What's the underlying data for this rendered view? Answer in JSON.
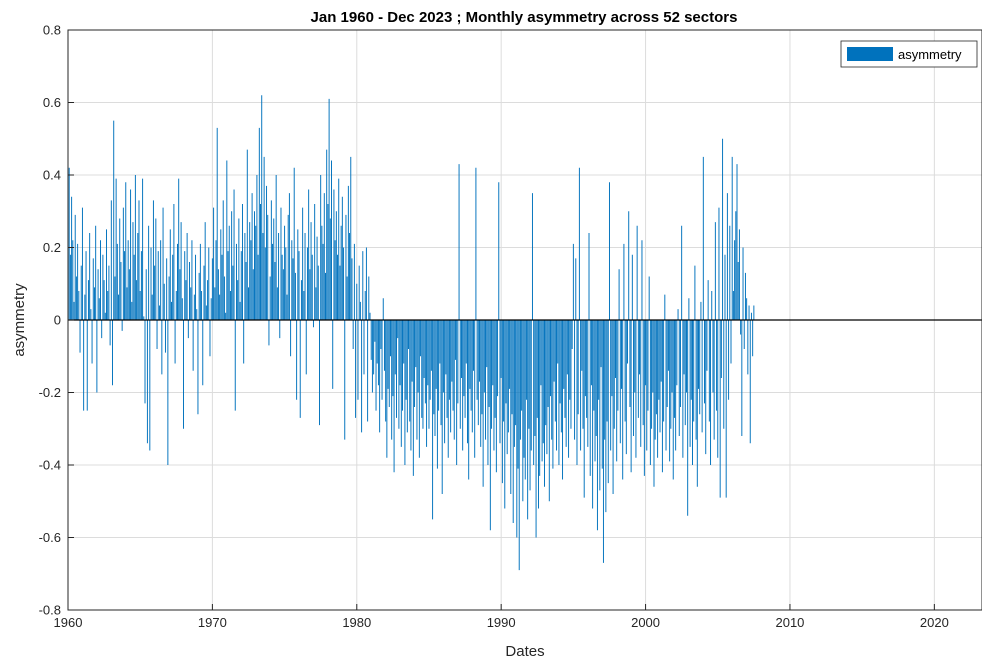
{
  "chart_data": {
    "type": "bar",
    "title": "Jan 1960 - Dec 2023 ; Monthly asymmetry across 52 sectors",
    "xlabel": "Dates",
    "ylabel": "asymmetry",
    "xlim": [
      1960,
      2023.3
    ],
    "ylim": [
      -0.8,
      0.8
    ],
    "x_ticks": [
      1960,
      1970,
      1980,
      1990,
      2000,
      2010,
      2020
    ],
    "y_ticks": [
      -0.8,
      -0.6,
      -0.4,
      -0.2,
      0,
      0.2,
      0.4,
      0.6,
      0.8
    ],
    "y_tick_labels": [
      "-0.8",
      "-0.6",
      "-0.4",
      "-0.2",
      "0",
      "0.2",
      "0.4",
      "0.6",
      "0.8"
    ],
    "grid": true,
    "legend_position": "top-right",
    "bar_color": "#0072BD",
    "series": [
      {
        "name": "asymmetry",
        "x_start": "1960-01",
        "frequency": "monthly",
        "values": [
          -0.26,
          0.42,
          0.18,
          0.34,
          0.22,
          0.05,
          0.29,
          0.12,
          0.21,
          0.08,
          -0.09,
          0.15,
          0.31,
          -0.25,
          0.07,
          0.19,
          -0.25,
          0.11,
          0.24,
          0.03,
          -0.12,
          0.17,
          0.09,
          0.26,
          -0.2,
          0.14,
          0.06,
          0.22,
          -0.05,
          0.18,
          0.11,
          0.02,
          0.25,
          0.08,
          0.15,
          -0.07,
          0.33,
          -0.18,
          0.55,
          0.12,
          0.39,
          0.21,
          0.07,
          0.28,
          0.16,
          -0.03,
          0.31,
          0.19,
          0.38,
          0.09,
          0.22,
          0.14,
          0.36,
          0.05,
          0.27,
          0.18,
          0.4,
          0.11,
          0.24,
          0.33,
          0.08,
          0.19,
          0.39,
          0.01,
          -0.23,
          0.14,
          -0.34,
          0.26,
          -0.36,
          0.2,
          0.07,
          0.33,
          0.15,
          0.28,
          -0.08,
          0.19,
          0.04,
          0.22,
          -0.15,
          0.31,
          0.1,
          -0.09,
          0.17,
          -0.4,
          0.12,
          0.25,
          0.05,
          0.18,
          0.32,
          -0.12,
          0.08,
          0.21,
          0.39,
          0.14,
          0.27,
          0.06,
          -0.3,
          0.19,
          0.11,
          0.24,
          -0.05,
          0.16,
          0.09,
          0.22,
          -0.14,
          0.07,
          0.18,
          0.03,
          -0.26,
          0.13,
          0.21,
          0.08,
          -0.18,
          0.15,
          0.27,
          0.04,
          0.11,
          0.2,
          -0.1,
          0.06,
          0.17,
          0.31,
          0.09,
          0.22,
          0.53,
          0.14,
          0.07,
          0.25,
          0.18,
          0.33,
          0.12,
          0.02,
          0.44,
          0.19,
          0.26,
          0.08,
          0.3,
          0.15,
          0.36,
          -0.25,
          0.21,
          0.11,
          0.28,
          0.05,
          0.19,
          0.32,
          -0.12,
          0.24,
          0.16,
          0.47,
          0.09,
          0.27,
          0.22,
          0.35,
          0.14,
          0.3,
          0.26,
          0.4,
          0.18,
          0.53,
          0.32,
          0.62,
          0.24,
          0.45,
          0.2,
          0.37,
          0.29,
          -0.07,
          0.12,
          0.33,
          0.21,
          0.28,
          0.16,
          0.4,
          0.09,
          0.24,
          -0.05,
          0.31,
          0.18,
          0.14,
          0.26,
          0.2,
          0.07,
          0.29,
          0.35,
          -0.1,
          0.22,
          0.17,
          0.42,
          0.13,
          -0.22,
          0.25,
          0.19,
          -0.27,
          0.11,
          0.31,
          0.08,
          0.24,
          -0.15,
          0.2,
          0.36,
          0.14,
          0.27,
          0.18,
          -0.02,
          0.32,
          0.09,
          0.23,
          0.15,
          -0.29,
          0.4,
          0.26,
          0.21,
          0.35,
          0.13,
          0.47,
          0.32,
          0.61,
          0.28,
          0.44,
          -0.19,
          0.36,
          0.22,
          0.3,
          0.18,
          0.39,
          0.15,
          0.26,
          0.34,
          0.2,
          -0.33,
          0.29,
          0.12,
          0.37,
          0.24,
          0.45,
          0.17,
          -0.08,
          0.21,
          -0.27,
          0.1,
          -0.22,
          0.15,
          0.05,
          -0.31,
          0.19,
          -0.15,
          0.08,
          0.2,
          -0.28,
          0.12,
          0.02,
          -0.11,
          -0.2,
          -0.15,
          -0.06,
          -0.25,
          -0.12,
          -0.18,
          -0.31,
          -0.08,
          -0.22,
          0.06,
          -0.14,
          -0.28,
          -0.38,
          -0.19,
          -0.24,
          -0.1,
          -0.33,
          -0.21,
          -0.42,
          -0.15,
          -0.27,
          -0.05,
          -0.3,
          -0.18,
          -0.35,
          -0.25,
          -0.12,
          -0.4,
          -0.22,
          -0.31,
          -0.08,
          -0.28,
          -0.36,
          -0.17,
          -0.43,
          -0.24,
          -0.13,
          -0.33,
          -0.2,
          -0.38,
          -0.1,
          -0.27,
          -0.3,
          -0.16,
          -0.23,
          -0.35,
          -0.18,
          -0.3,
          -0.22,
          -0.14,
          -0.55,
          -0.26,
          -0.32,
          -0.19,
          -0.41,
          -0.25,
          -0.12,
          -0.29,
          -0.48,
          -0.2,
          -0.34,
          -0.15,
          -0.27,
          -0.38,
          -0.22,
          -0.31,
          -0.17,
          -0.25,
          -0.33,
          -0.11,
          -0.4,
          -0.23,
          0.43,
          -0.3,
          -0.16,
          -0.36,
          -0.21,
          -0.27,
          -0.12,
          -0.34,
          -0.44,
          -0.19,
          -0.25,
          -0.31,
          -0.14,
          -0.38,
          0.42,
          -0.22,
          -0.29,
          -0.17,
          -0.35,
          -0.26,
          -0.46,
          -0.2,
          -0.33,
          -0.13,
          -0.4,
          -0.24,
          -0.58,
          -0.3,
          -0.18,
          -0.36,
          -0.27,
          -0.42,
          -0.21,
          0.38,
          -0.34,
          -0.16,
          -0.45,
          -0.28,
          -0.52,
          -0.23,
          -0.37,
          -0.31,
          -0.19,
          -0.48,
          -0.26,
          -0.56,
          -0.35,
          -0.29,
          -0.6,
          -0.41,
          -0.69,
          -0.33,
          -0.25,
          -0.5,
          -0.38,
          -0.44,
          -0.22,
          -0.55,
          -0.3,
          -0.47,
          -0.36,
          0.35,
          -0.4,
          -0.32,
          -0.6,
          -0.27,
          -0.52,
          -0.43,
          -0.18,
          -0.39,
          -0.34,
          -0.46,
          -0.29,
          -0.37,
          -0.24,
          -0.5,
          -0.21,
          -0.33,
          -0.41,
          -0.17,
          -0.28,
          -0.36,
          -0.12,
          -0.4,
          -0.23,
          -0.31,
          -0.44,
          -0.19,
          -0.27,
          -0.35,
          -0.15,
          -0.38,
          -0.22,
          -0.3,
          -0.08,
          0.21,
          -0.33,
          0.17,
          -0.4,
          -0.26,
          0.42,
          -0.36,
          -0.14,
          -0.3,
          -0.49,
          -0.21,
          -0.27,
          -0.35,
          0.24,
          -0.43,
          -0.18,
          -0.52,
          -0.25,
          -0.39,
          -0.32,
          -0.58,
          -0.22,
          -0.47,
          -0.13,
          -0.41,
          -0.67,
          -0.33,
          -0.53,
          -0.28,
          -0.45,
          0.38,
          -0.36,
          -0.21,
          -0.48,
          -0.3,
          -0.16,
          -0.39,
          -0.25,
          0.14,
          -0.34,
          -0.19,
          -0.44,
          0.21,
          -0.28,
          -0.37,
          -0.12,
          0.3,
          -0.24,
          -0.42,
          0.18,
          -0.32,
          -0.2,
          -0.38,
          0.26,
          -0.27,
          -0.15,
          -0.35,
          0.22,
          -0.29,
          -0.43,
          -0.18,
          -0.36,
          -0.25,
          0.12,
          -0.4,
          -0.3,
          -0.2,
          -0.46,
          -0.33,
          -0.26,
          -0.38,
          -0.22,
          -0.31,
          -0.17,
          -0.42,
          -0.28,
          0.07,
          -0.36,
          -0.24,
          -0.14,
          -0.39,
          -0.3,
          -0.2,
          -0.44,
          -0.27,
          -0.36,
          -0.18,
          0.03,
          -0.32,
          -0.24,
          0.26,
          -0.38,
          -0.15,
          -0.29,
          -0.2,
          -0.54,
          0.06,
          -0.35,
          -0.22,
          -0.4,
          -0.28,
          0.15,
          -0.33,
          -0.46,
          -0.19,
          -0.26,
          0.05,
          -0.31,
          0.45,
          -0.23,
          -0.37,
          -0.14,
          0.11,
          -0.28,
          -0.4,
          0.08,
          -0.2,
          -0.33,
          0.27,
          -0.25,
          -0.38,
          0.31,
          -0.49,
          -0.16,
          0.5,
          -0.3,
          0.18,
          -0.49,
          0.35,
          -0.22,
          0.26,
          -0.12,
          0.45,
          0.08,
          0.22,
          0.3,
          0.43,
          0.16,
          0.25,
          -0.04,
          -0.32,
          0.2,
          -0.08,
          0.13,
          0.06,
          -0.15,
          0.04,
          -0.34,
          0.02,
          -0.1,
          0.04
        ]
      }
    ]
  }
}
